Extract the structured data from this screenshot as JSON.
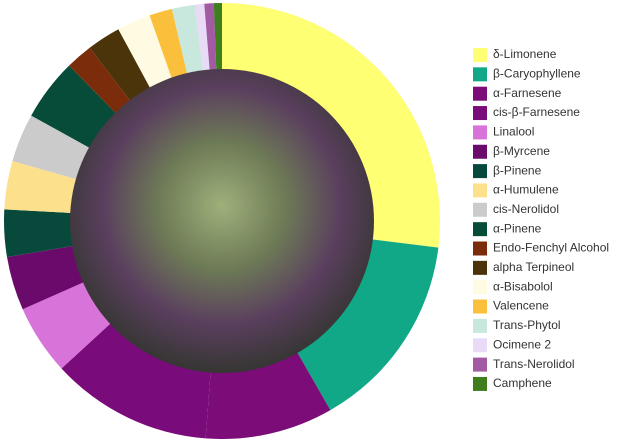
{
  "chart_data": {
    "type": "donut",
    "categories": [
      "δ-Limonene",
      "β-Caryophyllene",
      "α-Farnesene",
      "cis-β-Farnesene",
      "Linalool",
      "β-Myrcene",
      "β-Pinene",
      "α-Humulene",
      "cis-Nerolidol",
      "α-Pinene",
      "Endo-Fenchyl Alcohol",
      "alpha Terpineol",
      "α-Bisabolol",
      "Valencene",
      "Trans-Phytol",
      "Ocimene 2",
      "Trans-Nerolidol",
      "Camphene"
    ],
    "values": [
      27,
      14.8,
      9.5,
      12,
      5.2,
      4,
      3.5,
      3.6,
      3.6,
      4.6,
      2,
      2.5,
      2.5,
      1.7,
      1.7,
      0.7,
      0.7,
      0.6
    ],
    "colors": [
      "#ffff73",
      "#10a886",
      "#7b0c78",
      "#7a0b7a",
      "#d873da",
      "#6a0b6c",
      "#07493b",
      "#fde08c",
      "#cbcbcb",
      "#074b39",
      "#7b2c0b",
      "#4b330a",
      "#fffbe2",
      "#fbc03b",
      "#c8e7dd",
      "#e9daf8",
      "#a25aa2",
      "#3f7e1f"
    ],
    "legend": "right"
  }
}
